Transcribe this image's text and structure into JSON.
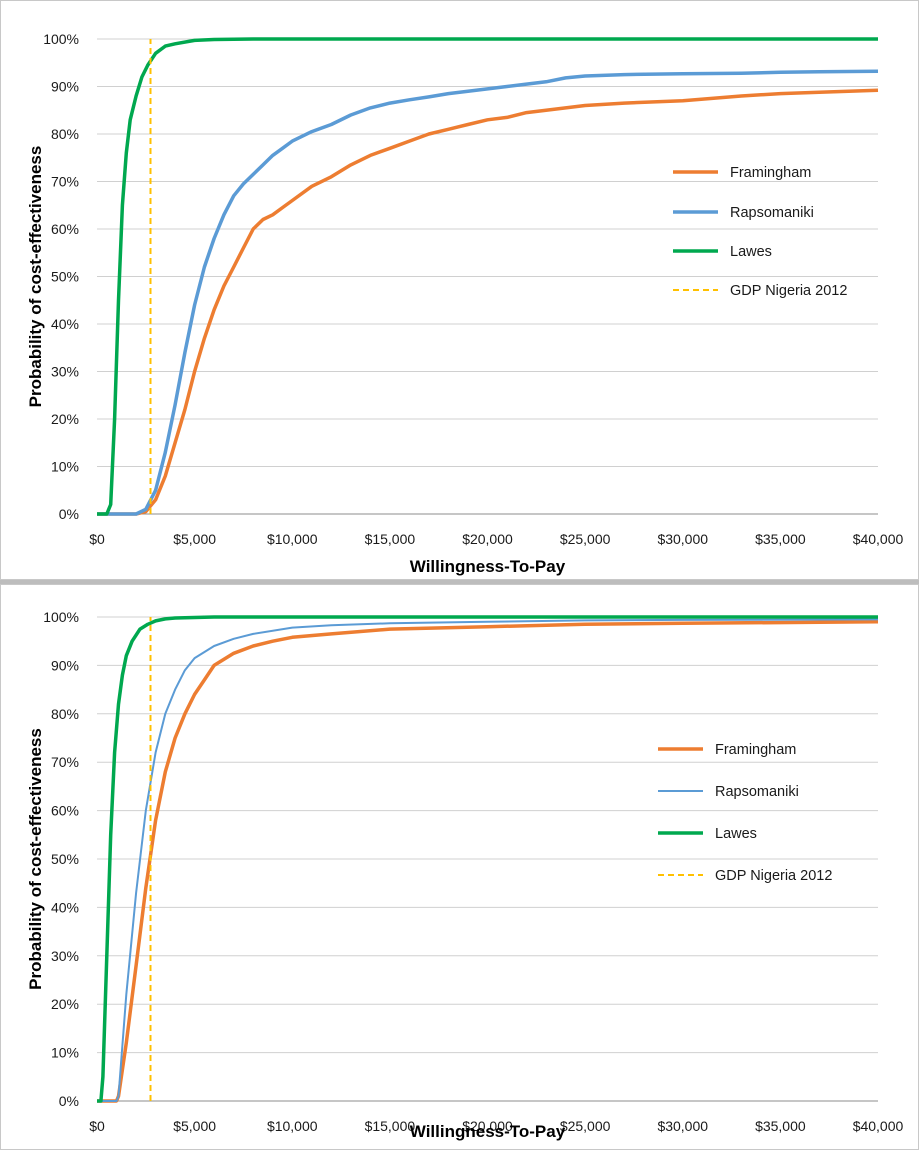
{
  "chart_data": [
    {
      "type": "line",
      "title": "",
      "xlabel": "Willingness-To-Pay",
      "ylabel": "Probability of cost-effectiveness",
      "xlim": [
        0,
        40000
      ],
      "ylim": [
        0,
        1
      ],
      "x_ticks": [
        "$0",
        "$5,000",
        "$10,000",
        "$15,000",
        "$20,000",
        "$25,000",
        "$30,000",
        "$35,000",
        "$40,000"
      ],
      "y_ticks": [
        "0%",
        "10%",
        "20%",
        "30%",
        "40%",
        "50%",
        "60%",
        "70%",
        "80%",
        "90%",
        "100%"
      ],
      "grid": "horizontal",
      "legend_position": "right",
      "series": [
        {
          "name": "Framingham",
          "color": "#ed7d31",
          "style": "solid-thick",
          "x": [
            0,
            2000,
            2500,
            3000,
            3500,
            4000,
            4500,
            5000,
            5500,
            6000,
            6500,
            7000,
            7500,
            8000,
            8500,
            9000,
            9500,
            10000,
            11000,
            12000,
            13000,
            14000,
            15000,
            16000,
            17000,
            18000,
            19000,
            20000,
            21000,
            22000,
            23000,
            24000,
            25000,
            27000,
            30000,
            33000,
            35000,
            37000,
            40000
          ],
          "y": [
            0,
            0,
            0.005,
            0.03,
            0.08,
            0.15,
            0.22,
            0.3,
            0.37,
            0.43,
            0.48,
            0.52,
            0.56,
            0.6,
            0.62,
            0.63,
            0.645,
            0.66,
            0.69,
            0.71,
            0.735,
            0.755,
            0.77,
            0.785,
            0.8,
            0.81,
            0.82,
            0.83,
            0.835,
            0.845,
            0.85,
            0.855,
            0.86,
            0.865,
            0.87,
            0.88,
            0.885,
            0.888,
            0.892
          ]
        },
        {
          "name": "Rapsomaniki",
          "color": "#5b9bd5",
          "style": "solid-thick",
          "x": [
            0,
            2000,
            2500,
            3000,
            3500,
            4000,
            4500,
            5000,
            5500,
            6000,
            6500,
            7000,
            7500,
            8000,
            8500,
            9000,
            9500,
            10000,
            11000,
            12000,
            13000,
            14000,
            15000,
            16000,
            17000,
            18000,
            19000,
            20000,
            21000,
            22000,
            23000,
            24000,
            25000,
            27000,
            30000,
            33000,
            35000,
            37000,
            40000
          ],
          "y": [
            0,
            0,
            0.01,
            0.05,
            0.13,
            0.23,
            0.34,
            0.44,
            0.52,
            0.58,
            0.63,
            0.67,
            0.695,
            0.715,
            0.735,
            0.755,
            0.77,
            0.785,
            0.805,
            0.82,
            0.84,
            0.855,
            0.865,
            0.872,
            0.878,
            0.885,
            0.89,
            0.895,
            0.9,
            0.905,
            0.91,
            0.918,
            0.922,
            0.925,
            0.927,
            0.928,
            0.93,
            0.931,
            0.932
          ]
        },
        {
          "name": "Lawes",
          "color": "#00a84f",
          "style": "solid-thick",
          "x": [
            0,
            500,
            700,
            900,
            1100,
            1300,
            1500,
            1700,
            2000,
            2300,
            2600,
            3000,
            3500,
            4000,
            5000,
            6000,
            8000,
            40000
          ],
          "y": [
            0,
            0,
            0.02,
            0.2,
            0.45,
            0.65,
            0.76,
            0.83,
            0.88,
            0.92,
            0.945,
            0.97,
            0.985,
            0.99,
            0.997,
            0.999,
            1.0,
            1.0
          ]
        },
        {
          "name": "GDP Nigeria 2012",
          "color": "#ffc000",
          "style": "dashed",
          "x": [
            2742,
            2742
          ],
          "y": [
            0,
            1
          ]
        }
      ]
    },
    {
      "type": "line",
      "title": "",
      "xlabel": "Willingness-To-Pay",
      "ylabel": "Probability of cost-effectiveness",
      "xlim": [
        0,
        40000
      ],
      "ylim": [
        0,
        1
      ],
      "x_ticks": [
        "$0",
        "$5,000",
        "$10,000",
        "$15,000",
        "$20,000",
        "$25,000",
        "$30,000",
        "$35,000",
        "$40,000"
      ],
      "y_ticks": [
        "0%",
        "10%",
        "20%",
        "30%",
        "40%",
        "50%",
        "60%",
        "70%",
        "80%",
        "90%",
        "100%"
      ],
      "grid": "horizontal",
      "legend_position": "right",
      "series": [
        {
          "name": "Framingham",
          "color": "#ed7d31",
          "style": "solid-thick",
          "x": [
            0,
            1000,
            1100,
            1500,
            2000,
            2500,
            3000,
            3500,
            4000,
            4500,
            5000,
            5500,
            6000,
            7000,
            8000,
            9000,
            10000,
            12000,
            15000,
            20000,
            25000,
            30000,
            40000
          ],
          "y": [
            0,
            0,
            0.01,
            0.12,
            0.28,
            0.44,
            0.58,
            0.68,
            0.75,
            0.8,
            0.84,
            0.87,
            0.9,
            0.925,
            0.94,
            0.95,
            0.958,
            0.965,
            0.975,
            0.98,
            0.985,
            0.987,
            0.99
          ]
        },
        {
          "name": "Rapsomaniki",
          "color": "#5b9bd5",
          "style": "solid-thin",
          "x": [
            0,
            1000,
            1100,
            1500,
            2000,
            2500,
            3000,
            3500,
            4000,
            4500,
            5000,
            6000,
            7000,
            8000,
            10000,
            12000,
            15000,
            20000,
            25000,
            30000,
            40000
          ],
          "y": [
            0,
            0,
            0.01,
            0.22,
            0.43,
            0.6,
            0.72,
            0.8,
            0.85,
            0.89,
            0.915,
            0.94,
            0.955,
            0.965,
            0.978,
            0.983,
            0.987,
            0.99,
            0.993,
            0.994,
            0.995
          ]
        },
        {
          "name": "Lawes",
          "color": "#00a84f",
          "style": "solid-thick",
          "x": [
            0,
            200,
            300,
            500,
            700,
            900,
            1100,
            1300,
            1500,
            1800,
            2200,
            2600,
            3000,
            3500,
            4000,
            5000,
            6000,
            40000
          ],
          "y": [
            0,
            0,
            0.05,
            0.3,
            0.55,
            0.72,
            0.82,
            0.88,
            0.92,
            0.95,
            0.975,
            0.985,
            0.992,
            0.996,
            0.998,
            0.999,
            1.0,
            1.0
          ]
        },
        {
          "name": "GDP Nigeria 2012",
          "color": "#ffc000",
          "style": "dashed",
          "x": [
            2742,
            2742
          ],
          "y": [
            0,
            1
          ]
        }
      ]
    }
  ]
}
